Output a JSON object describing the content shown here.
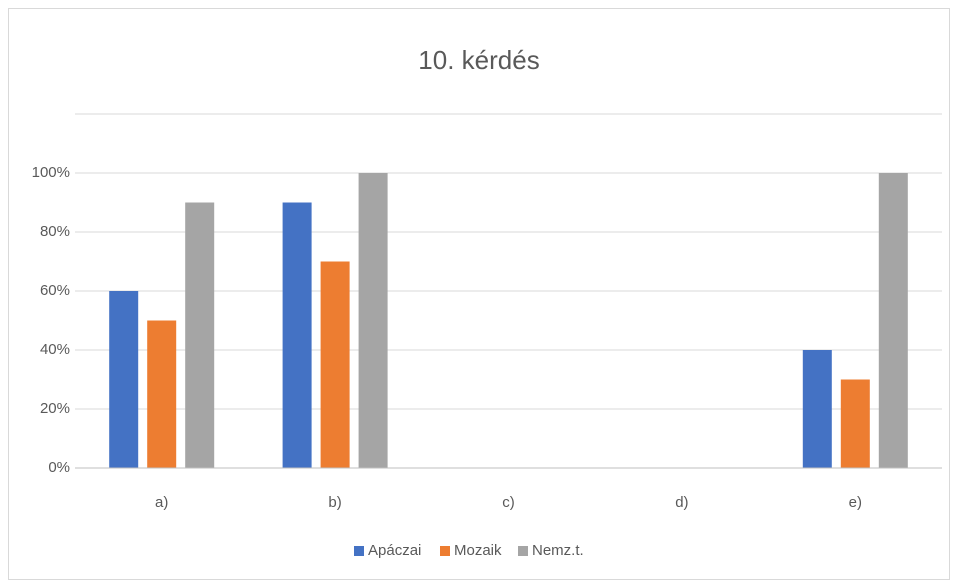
{
  "chart_data": {
    "type": "bar",
    "title": "10. kérdés",
    "categories": [
      "a)",
      "b)",
      "c)",
      "d)",
      "e)"
    ],
    "series": [
      {
        "name": "Apáczai",
        "color": "#4472c4",
        "values": [
          60,
          90,
          0,
          0,
          40
        ]
      },
      {
        "name": "Mozaik",
        "color": "#ed7d31",
        "values": [
          50,
          70,
          0,
          0,
          30
        ]
      },
      {
        "name": "Nemz.t.",
        "color": "#a5a5a5",
        "values": [
          90,
          100,
          0,
          0,
          100
        ]
      }
    ],
    "ylim": [
      0,
      120
    ],
    "yticks": [
      {
        "value": 0,
        "label": "0%"
      },
      {
        "value": 20,
        "label": "20%"
      },
      {
        "value": 40,
        "label": "40%"
      },
      {
        "value": 60,
        "label": "60%"
      },
      {
        "value": 80,
        "label": "80%"
      },
      {
        "value": 100,
        "label": "100%"
      }
    ],
    "grid": true,
    "legend": "bottom"
  }
}
